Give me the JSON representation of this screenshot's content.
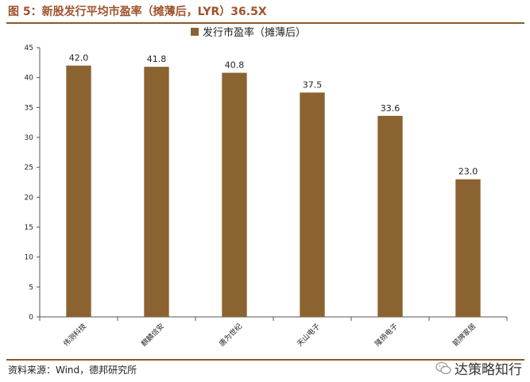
{
  "header": {
    "figure_title": "图 5：新股发行平均市盈率（摊薄后，LYR）36.5X"
  },
  "footer": {
    "source": "资料来源：Wind，德邦研究所"
  },
  "watermark": {
    "text": "达策略知行"
  },
  "colors": {
    "bar": "#8b6331",
    "accent": "#a0522d",
    "rule": "#8b5a2b"
  },
  "chart_data": {
    "type": "bar",
    "title": "",
    "xlabel": "",
    "ylabel": "",
    "legend_position": "top-center",
    "grid": false,
    "ylim": [
      0,
      45
    ],
    "yticks": [
      0,
      5,
      10,
      15,
      20,
      25,
      30,
      35,
      40,
      45
    ],
    "categories": [
      "伟测科技",
      "麒麟信安",
      "唐为世纪",
      "天山电子",
      "隆扬电子",
      "箭牌家居"
    ],
    "series": [
      {
        "name": "发行市盈率（摊薄后）",
        "values": [
          42.0,
          41.8,
          40.8,
          37.5,
          33.6,
          23.0
        ],
        "labels": [
          "42.0",
          "41.8",
          "40.8",
          "37.5",
          "33.6",
          "23.0"
        ]
      }
    ]
  }
}
